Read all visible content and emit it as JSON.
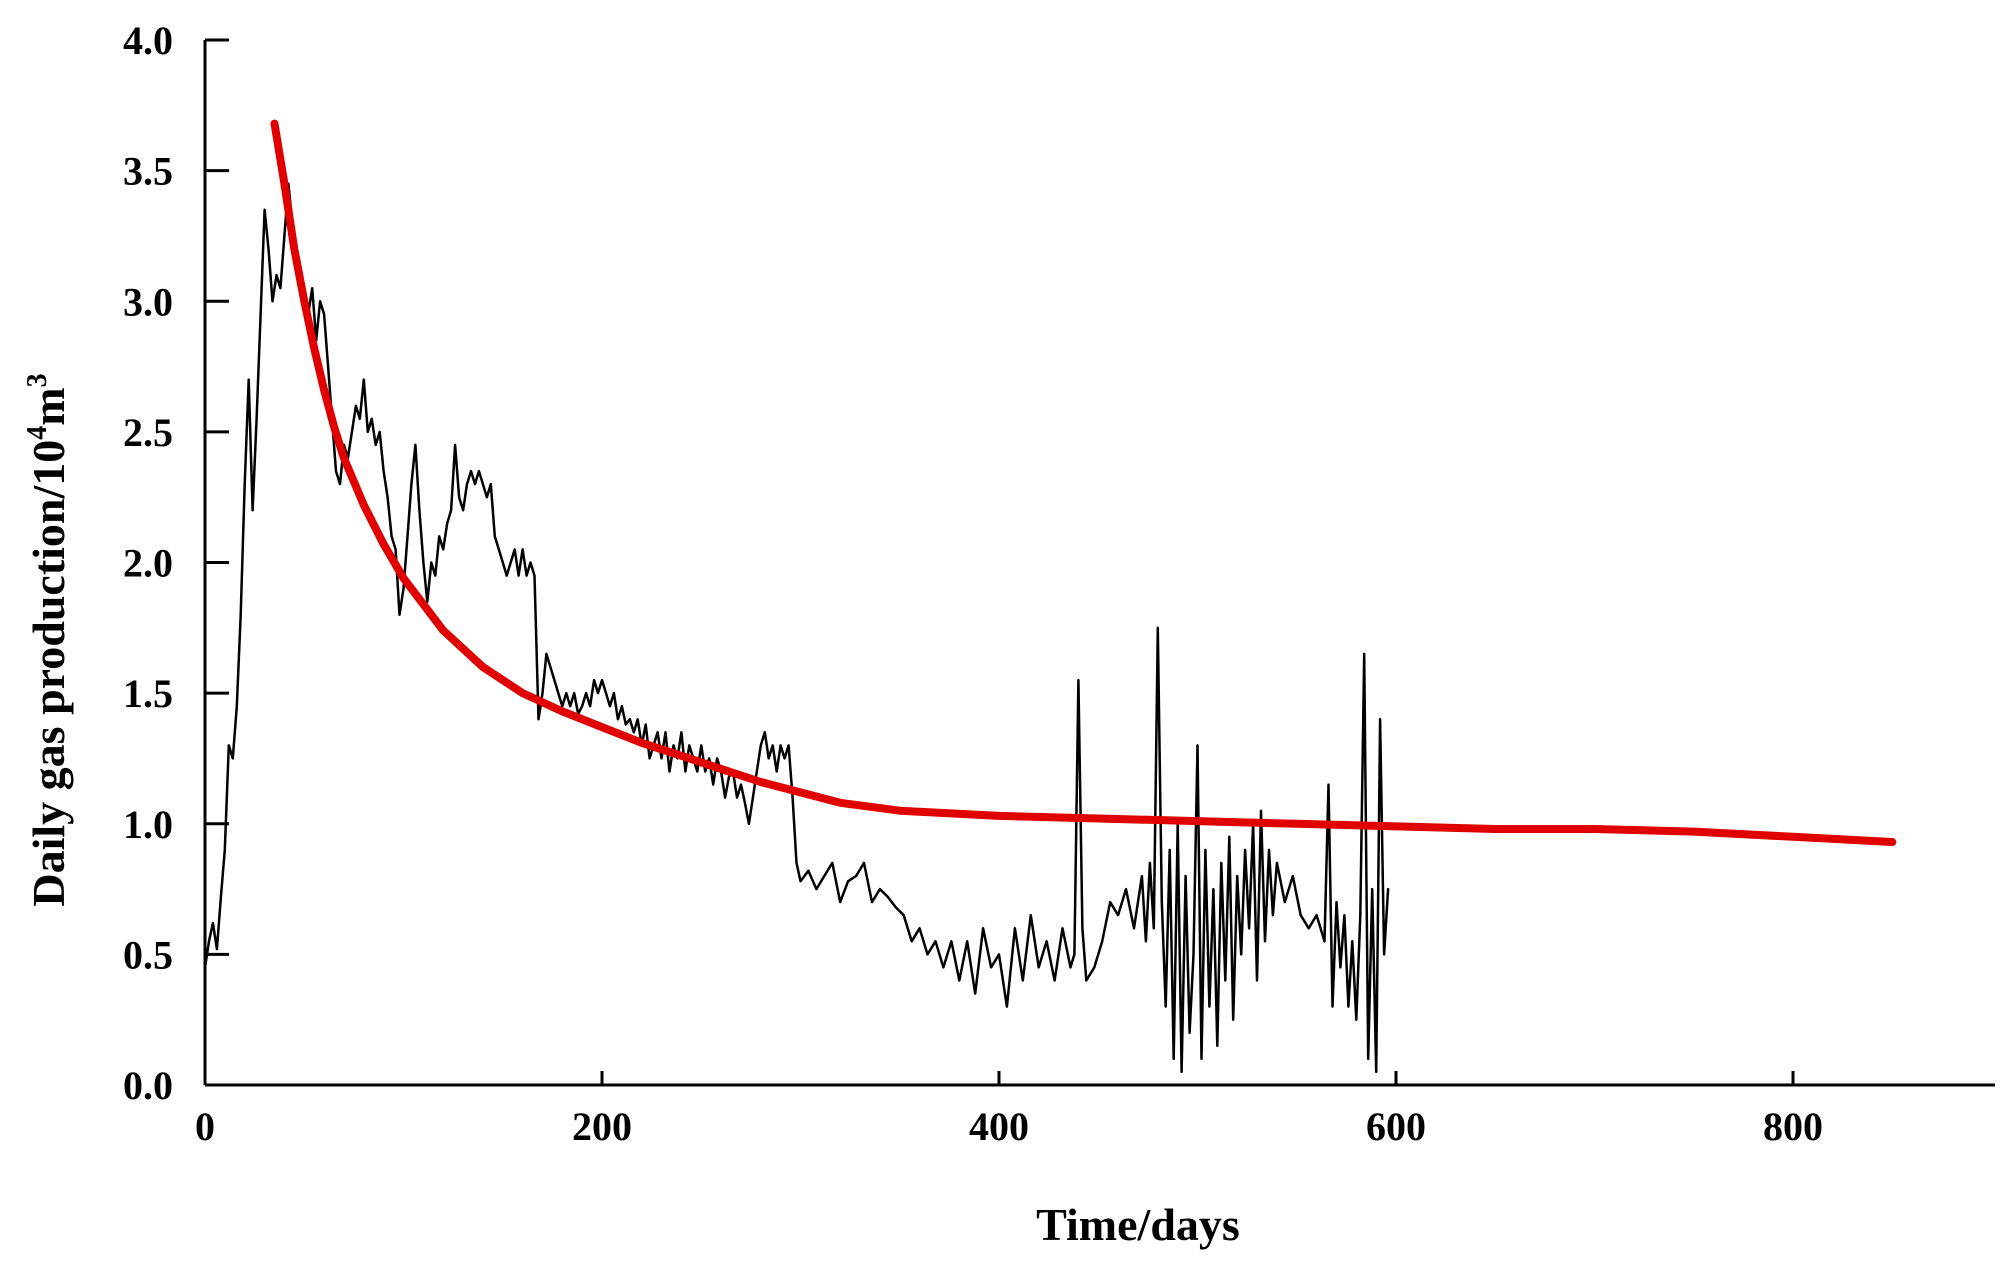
{
  "chart_data": {
    "type": "line",
    "title": "",
    "xlabel": "Time/days",
    "ylabel": "Daily gas production/10",
    "ylabel_sup1": "4",
    "ylabel_mid": "m",
    "ylabel_sup2": "3",
    "xlim": [
      0,
      900
    ],
    "ylim": [
      0,
      4.0
    ],
    "x_ticks": [
      {
        "value": 0,
        "label": "0"
      },
      {
        "value": 200,
        "label": "200"
      },
      {
        "value": 400,
        "label": "400"
      },
      {
        "value": 600,
        "label": "600"
      },
      {
        "value": 800,
        "label": "800"
      }
    ],
    "y_ticks": [
      {
        "value": 0.0,
        "label": "0.0"
      },
      {
        "value": 0.5,
        "label": "0.5"
      },
      {
        "value": 1.0,
        "label": "1.0"
      },
      {
        "value": 1.5,
        "label": "1.5"
      },
      {
        "value": 2.0,
        "label": "2.0"
      },
      {
        "value": 2.5,
        "label": "2.5"
      },
      {
        "value": 3.0,
        "label": "3.0"
      },
      {
        "value": 3.5,
        "label": "3.5"
      },
      {
        "value": 4.0,
        "label": "4.0"
      }
    ],
    "grid": false,
    "legend": "none",
    "series": [
      {
        "color": "#000000",
        "style": "thin",
        "points": [
          [
            0,
            0.45
          ],
          [
            2,
            0.55
          ],
          [
            4,
            0.62
          ],
          [
            6,
            0.52
          ],
          [
            8,
            0.72
          ],
          [
            10,
            0.9
          ],
          [
            12,
            1.3
          ],
          [
            14,
            1.25
          ],
          [
            16,
            1.45
          ],
          [
            18,
            1.8
          ],
          [
            20,
            2.3
          ],
          [
            22,
            2.7
          ],
          [
            24,
            2.2
          ],
          [
            26,
            2.55
          ],
          [
            28,
            2.95
          ],
          [
            30,
            3.35
          ],
          [
            32,
            3.2
          ],
          [
            34,
            3.0
          ],
          [
            36,
            3.1
          ],
          [
            38,
            3.05
          ],
          [
            40,
            3.25
          ],
          [
            42,
            3.45
          ],
          [
            44,
            3.3
          ],
          [
            46,
            3.2
          ],
          [
            48,
            3.1
          ],
          [
            50,
            3.0
          ],
          [
            52,
            2.95
          ],
          [
            54,
            3.05
          ],
          [
            56,
            2.85
          ],
          [
            58,
            3.0
          ],
          [
            60,
            2.95
          ],
          [
            62,
            2.75
          ],
          [
            64,
            2.55
          ],
          [
            66,
            2.35
          ],
          [
            68,
            2.3
          ],
          [
            70,
            2.45
          ],
          [
            72,
            2.4
          ],
          [
            74,
            2.5
          ],
          [
            76,
            2.6
          ],
          [
            78,
            2.55
          ],
          [
            80,
            2.7
          ],
          [
            82,
            2.5
          ],
          [
            84,
            2.55
          ],
          [
            86,
            2.45
          ],
          [
            88,
            2.5
          ],
          [
            90,
            2.35
          ],
          [
            92,
            2.25
          ],
          [
            94,
            2.1
          ],
          [
            96,
            2.05
          ],
          [
            98,
            1.8
          ],
          [
            100,
            1.9
          ],
          [
            102,
            2.1
          ],
          [
            104,
            2.3
          ],
          [
            106,
            2.45
          ],
          [
            108,
            2.2
          ],
          [
            110,
            2.0
          ],
          [
            112,
            1.85
          ],
          [
            114,
            2.0
          ],
          [
            116,
            1.95
          ],
          [
            118,
            2.1
          ],
          [
            120,
            2.05
          ],
          [
            122,
            2.15
          ],
          [
            124,
            2.2
          ],
          [
            126,
            2.45
          ],
          [
            128,
            2.25
          ],
          [
            130,
            2.2
          ],
          [
            132,
            2.3
          ],
          [
            134,
            2.35
          ],
          [
            136,
            2.3
          ],
          [
            138,
            2.35
          ],
          [
            140,
            2.3
          ],
          [
            142,
            2.25
          ],
          [
            144,
            2.3
          ],
          [
            146,
            2.1
          ],
          [
            148,
            2.05
          ],
          [
            150,
            2.0
          ],
          [
            152,
            1.95
          ],
          [
            154,
            2.0
          ],
          [
            156,
            2.05
          ],
          [
            158,
            1.95
          ],
          [
            160,
            2.05
          ],
          [
            162,
            1.95
          ],
          [
            164,
            2.0
          ],
          [
            166,
            1.95
          ],
          [
            168,
            1.4
          ],
          [
            170,
            1.5
          ],
          [
            172,
            1.65
          ],
          [
            174,
            1.6
          ],
          [
            176,
            1.55
          ],
          [
            178,
            1.5
          ],
          [
            180,
            1.45
          ],
          [
            182,
            1.5
          ],
          [
            184,
            1.45
          ],
          [
            186,
            1.5
          ],
          [
            188,
            1.42
          ],
          [
            190,
            1.45
          ],
          [
            192,
            1.5
          ],
          [
            194,
            1.45
          ],
          [
            196,
            1.55
          ],
          [
            198,
            1.5
          ],
          [
            200,
            1.55
          ],
          [
            202,
            1.5
          ],
          [
            204,
            1.45
          ],
          [
            206,
            1.5
          ],
          [
            208,
            1.4
          ],
          [
            210,
            1.45
          ],
          [
            212,
            1.38
          ],
          [
            214,
            1.4
          ],
          [
            216,
            1.35
          ],
          [
            218,
            1.4
          ],
          [
            220,
            1.3
          ],
          [
            222,
            1.38
          ],
          [
            224,
            1.25
          ],
          [
            226,
            1.3
          ],
          [
            228,
            1.35
          ],
          [
            230,
            1.25
          ],
          [
            232,
            1.35
          ],
          [
            234,
            1.2
          ],
          [
            236,
            1.3
          ],
          [
            238,
            1.25
          ],
          [
            240,
            1.35
          ],
          [
            242,
            1.2
          ],
          [
            244,
            1.3
          ],
          [
            246,
            1.25
          ],
          [
            248,
            1.2
          ],
          [
            250,
            1.3
          ],
          [
            252,
            1.2
          ],
          [
            254,
            1.25
          ],
          [
            256,
            1.15
          ],
          [
            258,
            1.25
          ],
          [
            260,
            1.2
          ],
          [
            262,
            1.1
          ],
          [
            264,
            1.18
          ],
          [
            266,
            1.2
          ],
          [
            268,
            1.1
          ],
          [
            270,
            1.15
          ],
          [
            272,
            1.08
          ],
          [
            274,
            1.0
          ],
          [
            276,
            1.1
          ],
          [
            278,
            1.2
          ],
          [
            280,
            1.3
          ],
          [
            282,
            1.35
          ],
          [
            284,
            1.25
          ],
          [
            286,
            1.3
          ],
          [
            288,
            1.2
          ],
          [
            290,
            1.3
          ],
          [
            292,
            1.25
          ],
          [
            294,
            1.3
          ],
          [
            296,
            1.1
          ],
          [
            298,
            0.85
          ],
          [
            300,
            0.78
          ],
          [
            304,
            0.82
          ],
          [
            308,
            0.75
          ],
          [
            312,
            0.8
          ],
          [
            316,
            0.85
          ],
          [
            320,
            0.7
          ],
          [
            324,
            0.78
          ],
          [
            328,
            0.8
          ],
          [
            332,
            0.85
          ],
          [
            336,
            0.7
          ],
          [
            340,
            0.75
          ],
          [
            344,
            0.72
          ],
          [
            348,
            0.68
          ],
          [
            352,
            0.65
          ],
          [
            356,
            0.55
          ],
          [
            360,
            0.6
          ],
          [
            364,
            0.5
          ],
          [
            368,
            0.55
          ],
          [
            372,
            0.45
          ],
          [
            376,
            0.55
          ],
          [
            380,
            0.4
          ],
          [
            384,
            0.55
          ],
          [
            388,
            0.35
          ],
          [
            392,
            0.6
          ],
          [
            396,
            0.45
          ],
          [
            400,
            0.5
          ],
          [
            404,
            0.3
          ],
          [
            408,
            0.6
          ],
          [
            412,
            0.4
          ],
          [
            416,
            0.65
          ],
          [
            420,
            0.45
          ],
          [
            424,
            0.55
          ],
          [
            428,
            0.4
          ],
          [
            432,
            0.6
          ],
          [
            436,
            0.45
          ],
          [
            438,
            0.5
          ],
          [
            440,
            1.55
          ],
          [
            442,
            0.6
          ],
          [
            444,
            0.4
          ],
          [
            448,
            0.45
          ],
          [
            452,
            0.55
          ],
          [
            456,
            0.7
          ],
          [
            460,
            0.65
          ],
          [
            464,
            0.75
          ],
          [
            468,
            0.6
          ],
          [
            472,
            0.8
          ],
          [
            474,
            0.55
          ],
          [
            476,
            0.85
          ],
          [
            478,
            0.6
          ],
          [
            480,
            1.75
          ],
          [
            482,
            0.7
          ],
          [
            484,
            0.3
          ],
          [
            486,
            0.9
          ],
          [
            488,
            0.1
          ],
          [
            490,
            1.0
          ],
          [
            492,
            0.05
          ],
          [
            494,
            0.8
          ],
          [
            496,
            0.2
          ],
          [
            498,
            0.5
          ],
          [
            500,
            1.3
          ],
          [
            502,
            0.1
          ],
          [
            504,
            0.9
          ],
          [
            506,
            0.3
          ],
          [
            508,
            0.75
          ],
          [
            510,
            0.15
          ],
          [
            512,
            0.85
          ],
          [
            514,
            0.4
          ],
          [
            516,
            0.95
          ],
          [
            518,
            0.25
          ],
          [
            520,
            0.8
          ],
          [
            522,
            0.5
          ],
          [
            524,
            0.9
          ],
          [
            526,
            0.6
          ],
          [
            528,
            1.0
          ],
          [
            530,
            0.4
          ],
          [
            532,
            1.05
          ],
          [
            534,
            0.55
          ],
          [
            536,
            0.9
          ],
          [
            538,
            0.65
          ],
          [
            540,
            0.85
          ],
          [
            544,
            0.7
          ],
          [
            548,
            0.8
          ],
          [
            552,
            0.65
          ],
          [
            556,
            0.6
          ],
          [
            560,
            0.65
          ],
          [
            564,
            0.55
          ],
          [
            566,
            1.15
          ],
          [
            568,
            0.3
          ],
          [
            570,
            0.7
          ],
          [
            572,
            0.45
          ],
          [
            574,
            0.65
          ],
          [
            576,
            0.3
          ],
          [
            578,
            0.55
          ],
          [
            580,
            0.25
          ],
          [
            582,
            0.65
          ],
          [
            584,
            1.65
          ],
          [
            586,
            0.1
          ],
          [
            588,
            0.75
          ],
          [
            590,
            0.05
          ],
          [
            592,
            1.4
          ],
          [
            594,
            0.5
          ],
          [
            596,
            0.75
          ]
        ]
      },
      {
        "color": "#e00000",
        "style": "thick",
        "points": [
          [
            35,
            3.68
          ],
          [
            40,
            3.45
          ],
          [
            45,
            3.2
          ],
          [
            50,
            3.0
          ],
          [
            55,
            2.82
          ],
          [
            60,
            2.66
          ],
          [
            65,
            2.52
          ],
          [
            70,
            2.4
          ],
          [
            80,
            2.22
          ],
          [
            90,
            2.07
          ],
          [
            100,
            1.94
          ],
          [
            120,
            1.74
          ],
          [
            140,
            1.6
          ],
          [
            160,
            1.5
          ],
          [
            180,
            1.43
          ],
          [
            200,
            1.37
          ],
          [
            220,
            1.31
          ],
          [
            240,
            1.26
          ],
          [
            260,
            1.21
          ],
          [
            280,
            1.16
          ],
          [
            300,
            1.12
          ],
          [
            320,
            1.08
          ],
          [
            350,
            1.05
          ],
          [
            400,
            1.03
          ],
          [
            450,
            1.02
          ],
          [
            500,
            1.01
          ],
          [
            550,
            1.0
          ],
          [
            600,
            0.99
          ],
          [
            650,
            0.98
          ],
          [
            700,
            0.98
          ],
          [
            750,
            0.97
          ],
          [
            800,
            0.95
          ],
          [
            850,
            0.93
          ]
        ]
      }
    ]
  }
}
